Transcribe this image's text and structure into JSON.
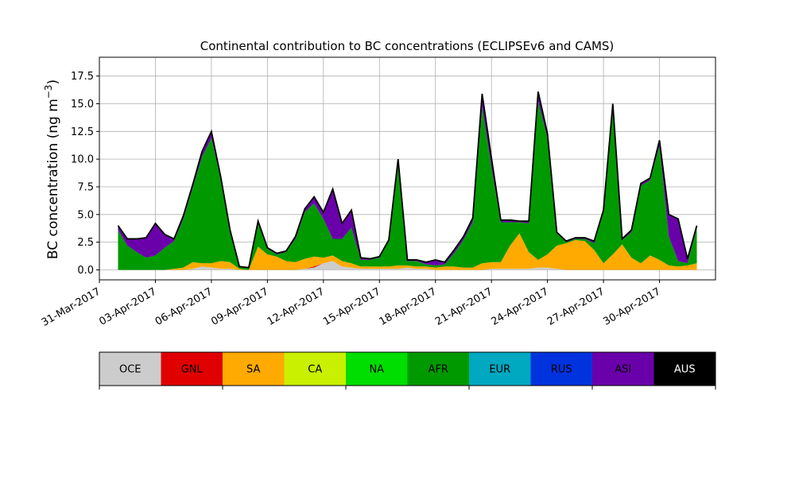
{
  "chart_data": {
    "type": "area",
    "stacked": true,
    "title": "Continental contribution to BC concentrations (ECLIPSEv6 and CAMS)",
    "ylabel_main": "BC concentration (ng m",
    "ylabel_sup": "−3",
    "ylabel_close": ")",
    "ylim": [
      -0.9,
      19.2
    ],
    "xlim": [
      "2017-03-31",
      "2017-05-03"
    ],
    "grid": true,
    "y_ticks": [
      0.0,
      2.5,
      5.0,
      7.5,
      10.0,
      12.5,
      15.0,
      17.5
    ],
    "y_tick_labels": [
      "0.0",
      "2.5",
      "5.0",
      "7.5",
      "10.0",
      "12.5",
      "15.0",
      "17.5"
    ],
    "x_ticks": [
      "2017-03-31",
      "2017-04-03",
      "2017-04-06",
      "2017-04-09",
      "2017-04-12",
      "2017-04-15",
      "2017-04-18",
      "2017-04-21",
      "2017-04-24",
      "2017-04-27",
      "2017-04-30"
    ],
    "x_tick_labels": [
      "31-Mar-2017",
      "03-Apr-2017",
      "06-Apr-2017",
      "09-Apr-2017",
      "12-Apr-2017",
      "15-Apr-2017",
      "18-Apr-2017",
      "21-Apr-2017",
      "24-Apr-2017",
      "27-Apr-2017",
      "30-Apr-2017"
    ],
    "x": [
      "2017-04-01",
      "2017-04-01T12:00",
      "2017-04-02",
      "2017-04-02T12:00",
      "2017-04-03",
      "2017-04-03T12:00",
      "2017-04-04",
      "2017-04-04T12:00",
      "2017-04-05",
      "2017-04-05T12:00",
      "2017-04-06",
      "2017-04-06T12:00",
      "2017-04-07",
      "2017-04-07T12:00",
      "2017-04-08",
      "2017-04-08T12:00",
      "2017-04-09",
      "2017-04-09T12:00",
      "2017-04-10",
      "2017-04-10T12:00",
      "2017-04-11",
      "2017-04-11T12:00",
      "2017-04-12",
      "2017-04-12T12:00",
      "2017-04-13",
      "2017-04-13T12:00",
      "2017-04-14",
      "2017-04-14T12:00",
      "2017-04-15",
      "2017-04-15T12:00",
      "2017-04-16",
      "2017-04-16T12:00",
      "2017-04-17",
      "2017-04-17T12:00",
      "2017-04-18",
      "2017-04-18T12:00",
      "2017-04-19",
      "2017-04-19T12:00",
      "2017-04-20",
      "2017-04-20T12:00",
      "2017-04-21",
      "2017-04-21T12:00",
      "2017-04-22",
      "2017-04-22T12:00",
      "2017-04-23",
      "2017-04-23T12:00",
      "2017-04-24",
      "2017-04-24T12:00",
      "2017-04-25",
      "2017-04-25T12:00",
      "2017-04-26",
      "2017-04-26T12:00",
      "2017-04-27",
      "2017-04-27T12:00",
      "2017-04-28",
      "2017-04-28T12:00",
      "2017-04-29",
      "2017-04-29T12:00",
      "2017-04-30",
      "2017-04-30T12:00",
      "2017-05-01",
      "2017-05-01T12:00",
      "2017-05-02"
    ],
    "series": [
      {
        "name": "OCE",
        "color": "#cccccc",
        "values": [
          0,
          0,
          0,
          0,
          0,
          0,
          0,
          0,
          0.1,
          0.3,
          0.2,
          0.1,
          0.1,
          0,
          0,
          0,
          0,
          0,
          0,
          0,
          0.1,
          0.2,
          0.6,
          0.8,
          0.3,
          0.2,
          0.1,
          0.1,
          0.1,
          0.1,
          0.1,
          0.2,
          0.1,
          0.1,
          0,
          0,
          0,
          0,
          0,
          0,
          0.1,
          0.1,
          0.1,
          0.1,
          0.1,
          0.2,
          0.2,
          0.1,
          0,
          0,
          0,
          0,
          0,
          0,
          0,
          0,
          0,
          0,
          0,
          0,
          0,
          0,
          0
        ]
      },
      {
        "name": "GNL",
        "color": "#e00000",
        "values": [
          0,
          0,
          0,
          0,
          0,
          0,
          0,
          0,
          0,
          0,
          0,
          0,
          0,
          0,
          0,
          0,
          0,
          0,
          0,
          0,
          0,
          0.1,
          0,
          0,
          0,
          0,
          0,
          0,
          0,
          0,
          0,
          0,
          0,
          0,
          0,
          0,
          0,
          0,
          0,
          0,
          0,
          0,
          0,
          0,
          0,
          0,
          0,
          0,
          0,
          0,
          0,
          0,
          0,
          0,
          0,
          0,
          0,
          0,
          0,
          0,
          0,
          0,
          0
        ]
      },
      {
        "name": "SA",
        "color": "#ffaa00",
        "values": [
          0,
          0,
          0,
          0,
          0,
          0,
          0.1,
          0.2,
          0.6,
          0.3,
          0.4,
          0.7,
          0.6,
          0.1,
          0,
          2.1,
          1.4,
          1.2,
          0.8,
          0.7,
          0.9,
          0.9,
          0.5,
          0.5,
          0.5,
          0.4,
          0.2,
          0.2,
          0.2,
          0.2,
          0.3,
          0.2,
          0.2,
          0.2,
          0.2,
          0.3,
          0.3,
          0.2,
          0.2,
          0.6,
          0.6,
          0.6,
          2.1,
          3.2,
          1.5,
          0.7,
          1.2,
          2.1,
          2.4,
          2.7,
          2.6,
          1.8,
          0.6,
          1.4,
          2.3,
          1.1,
          0.6,
          1.3,
          0.9,
          0.4,
          0.3,
          0.4,
          0.6
        ]
      },
      {
        "name": "CA",
        "color": "#c8f000",
        "values": [
          0,
          0,
          0,
          0,
          0,
          0,
          0,
          0,
          0,
          0,
          0,
          0,
          0,
          0,
          0,
          0,
          0,
          0,
          0,
          0,
          0,
          0,
          0,
          0,
          0,
          0,
          0,
          0,
          0,
          0,
          0,
          0,
          0,
          0,
          0,
          0,
          0,
          0,
          0,
          0,
          0,
          0,
          0,
          0,
          0,
          0,
          0,
          0,
          0,
          0,
          0,
          0,
          0,
          0,
          0,
          0,
          0,
          0,
          0,
          0,
          0,
          0,
          0
        ]
      },
      {
        "name": "NA",
        "color": "#00dd00",
        "values": [
          0,
          0,
          0,
          0,
          0,
          0,
          0,
          0,
          0,
          0,
          0,
          0,
          0,
          0,
          0,
          0,
          0,
          0,
          0,
          0,
          0,
          0,
          0,
          0,
          0,
          0,
          0,
          0,
          0,
          0,
          0,
          0,
          0,
          0,
          0,
          0,
          0,
          0,
          0,
          0,
          0,
          0,
          0,
          0,
          0,
          0,
          0,
          0,
          0,
          0,
          0,
          0,
          0,
          0,
          0,
          0,
          0,
          0,
          0,
          0,
          0,
          0,
          0
        ]
      },
      {
        "name": "AFR",
        "color": "#009900",
        "values": [
          3.6,
          2.2,
          1.6,
          1.1,
          1.3,
          2.0,
          2.5,
          4.4,
          6.7,
          9.6,
          11.3,
          7.4,
          2.8,
          0.2,
          0.2,
          2.2,
          0.5,
          0.2,
          0.8,
          2.1,
          4.2,
          4.8,
          3.5,
          1.5,
          2.0,
          3.2,
          0.6,
          0.6,
          0.8,
          2.3,
          9.4,
          0.4,
          0.5,
          0.2,
          0.2,
          0.2,
          1.2,
          2.5,
          4.1,
          14.1,
          8.5,
          3.6,
          2.1,
          1.0,
          2.6,
          14.3,
          10.5,
          1.1,
          0.1,
          0.1,
          0.2,
          0.6,
          4.7,
          12.9,
          0.4,
          2.3,
          7.0,
          6.8,
          10.3,
          2.6,
          0.5,
          0.2,
          3.2
        ]
      },
      {
        "name": "EUR",
        "color": "#00a8c0",
        "values": [
          0,
          0,
          0,
          0,
          0,
          0,
          0,
          0,
          0,
          0,
          0,
          0,
          0,
          0,
          0,
          0,
          0,
          0,
          0,
          0,
          0,
          0,
          0,
          0,
          0,
          0,
          0,
          0,
          0,
          0,
          0,
          0,
          0,
          0,
          0,
          0,
          0,
          0,
          0,
          0,
          0,
          0,
          0,
          0,
          0,
          0,
          0,
          0,
          0,
          0,
          0,
          0,
          0,
          0,
          0,
          0,
          0,
          0,
          0,
          0,
          0,
          0,
          0
        ]
      },
      {
        "name": "RUS",
        "color": "#0033dd",
        "values": [
          0,
          0,
          0,
          0,
          0,
          0,
          0,
          0,
          0,
          0,
          0,
          0,
          0,
          0,
          0,
          0,
          0,
          0,
          0,
          0,
          0,
          0,
          0,
          0,
          0,
          0,
          0,
          0,
          0,
          0,
          0,
          0,
          0,
          0,
          0,
          0,
          0,
          0,
          0,
          0,
          0,
          0,
          0,
          0,
          0,
          0,
          0,
          0,
          0,
          0,
          0,
          0,
          0,
          0,
          0,
          0,
          0,
          0,
          0,
          0,
          0,
          0,
          0
        ]
      },
      {
        "name": "ASI",
        "color": "#6a00aa",
        "values": [
          0.4,
          0.6,
          1.2,
          1.8,
          2.9,
          1.2,
          0.2,
          0.3,
          0.3,
          0.5,
          0.6,
          0.2,
          0.1,
          0,
          0,
          0.1,
          0.1,
          0.1,
          0.1,
          0.2,
          0.3,
          0.6,
          0.6,
          4.5,
          1.4,
          1.6,
          0.2,
          0.1,
          0.1,
          0.1,
          0.2,
          0.1,
          0.1,
          0.2,
          0.5,
          0.2,
          0.3,
          0.3,
          0.4,
          1.2,
          0.9,
          0.2,
          0.2,
          0.1,
          0.2,
          0.9,
          0.4,
          0.1,
          0.1,
          0.1,
          0.1,
          0.2,
          0.1,
          0.7,
          0.1,
          0.2,
          0.2,
          0.2,
          0.5,
          2.0,
          3.8,
          0.4,
          0.2
        ]
      },
      {
        "name": "AUS",
        "color": "#000000",
        "values": [
          0,
          0,
          0,
          0,
          0,
          0,
          0,
          0,
          0,
          0,
          0,
          0,
          0,
          0,
          0,
          0,
          0,
          0,
          0,
          0,
          0,
          0,
          0,
          0,
          0,
          0,
          0,
          0,
          0,
          0,
          0,
          0,
          0,
          0,
          0,
          0,
          0,
          0,
          0,
          0,
          0,
          0,
          0,
          0,
          0,
          0,
          0,
          0,
          0,
          0,
          0,
          0,
          0,
          0,
          0,
          0,
          0,
          0,
          0,
          0,
          0,
          0,
          0
        ]
      }
    ],
    "total_line_color": "#000000",
    "legend_placement": "bottom, separate colorbar"
  }
}
